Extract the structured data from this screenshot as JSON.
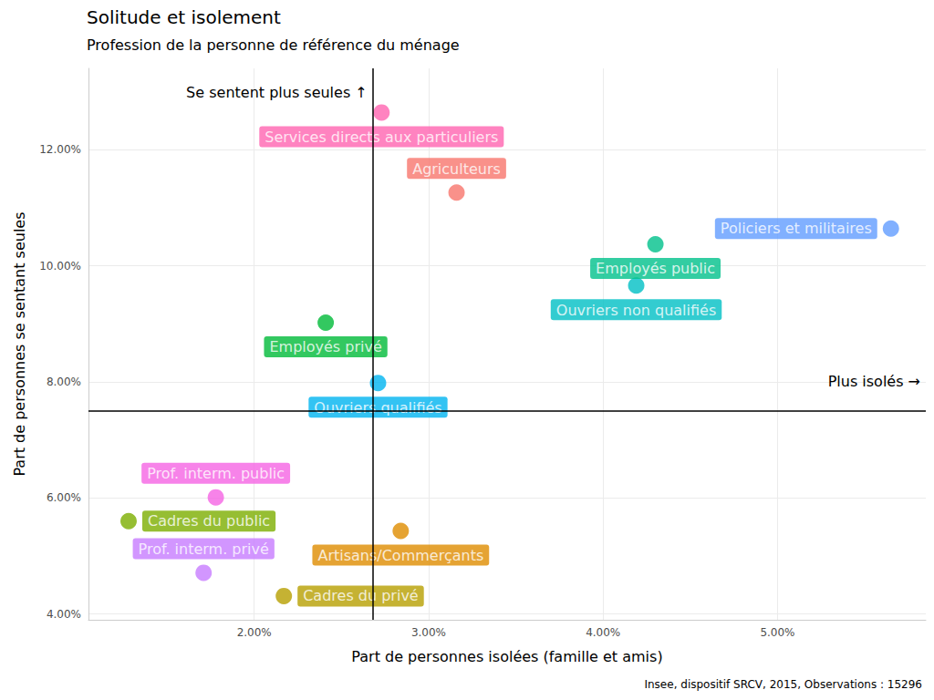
{
  "chart_data": {
    "type": "scatter",
    "title": "Solitude et isolement",
    "subtitle": "Profession de la personne de référence du ménage",
    "xlabel": "Part de personnes isolées (famille et amis)",
    "ylabel": "Part de personnes se sentant seules",
    "caption": "Insee, dispositif SRCV, 2015, Observations : 15296",
    "annotations": [
      "Se sentent plus seules ↑",
      "Plus isolés →"
    ],
    "ref_lines": {
      "x": 2.68,
      "y": 7.5
    },
    "xlim": [
      1.05,
      5.85
    ],
    "xticks": [
      {
        "value": 2,
        "label": "2.00%"
      },
      {
        "value": 3,
        "label": "3.00%"
      },
      {
        "value": 4,
        "label": "4.00%"
      },
      {
        "value": 5,
        "label": "5.00%"
      }
    ],
    "ylim": [
      3.9,
      13.4
    ],
    "yticks": [
      {
        "value": 4,
        "label": "4.00%"
      },
      {
        "value": 6,
        "label": "6.00%"
      },
      {
        "value": 8,
        "label": "8.00%"
      },
      {
        "value": 10,
        "label": "10.00%"
      },
      {
        "value": 12,
        "label": "12.00%"
      }
    ],
    "grid": true,
    "points": [
      {
        "label": "Services directs aux particuliers",
        "x": 2.73,
        "y": 12.64,
        "color": "#FF64B0"
      },
      {
        "label": "Agriculteurs",
        "x": 3.16,
        "y": 11.26,
        "color": "#F8766D"
      },
      {
        "label": "Policiers et militaires",
        "x": 5.65,
        "y": 10.64,
        "color": "#619CFF"
      },
      {
        "label": "Employés public",
        "x": 4.3,
        "y": 10.37,
        "color": "#00C08B"
      },
      {
        "label": "Ouvriers non qualifiés",
        "x": 4.19,
        "y": 9.66,
        "color": "#00BFC4"
      },
      {
        "label": "Employés privé",
        "x": 2.41,
        "y": 9.02,
        "color": "#00BA38"
      },
      {
        "label": "Ouvriers qualifiés",
        "x": 2.71,
        "y": 7.98,
        "color": "#00B4F0"
      },
      {
        "label": "Prof. interm. public",
        "x": 1.78,
        "y": 6.01,
        "color": "#F564E3"
      },
      {
        "label": "Cadres du public",
        "x": 1.28,
        "y": 5.6,
        "color": "#7CAE00"
      },
      {
        "label": "Artisans/Commerçants",
        "x": 2.84,
        "y": 5.43,
        "color": "#DE8C00"
      },
      {
        "label": "Prof. interm. privé",
        "x": 1.71,
        "y": 4.71,
        "color": "#C77CFF"
      },
      {
        "label": "Cadres du privé",
        "x": 2.17,
        "y": 4.31,
        "color": "#B79F00"
      }
    ]
  }
}
